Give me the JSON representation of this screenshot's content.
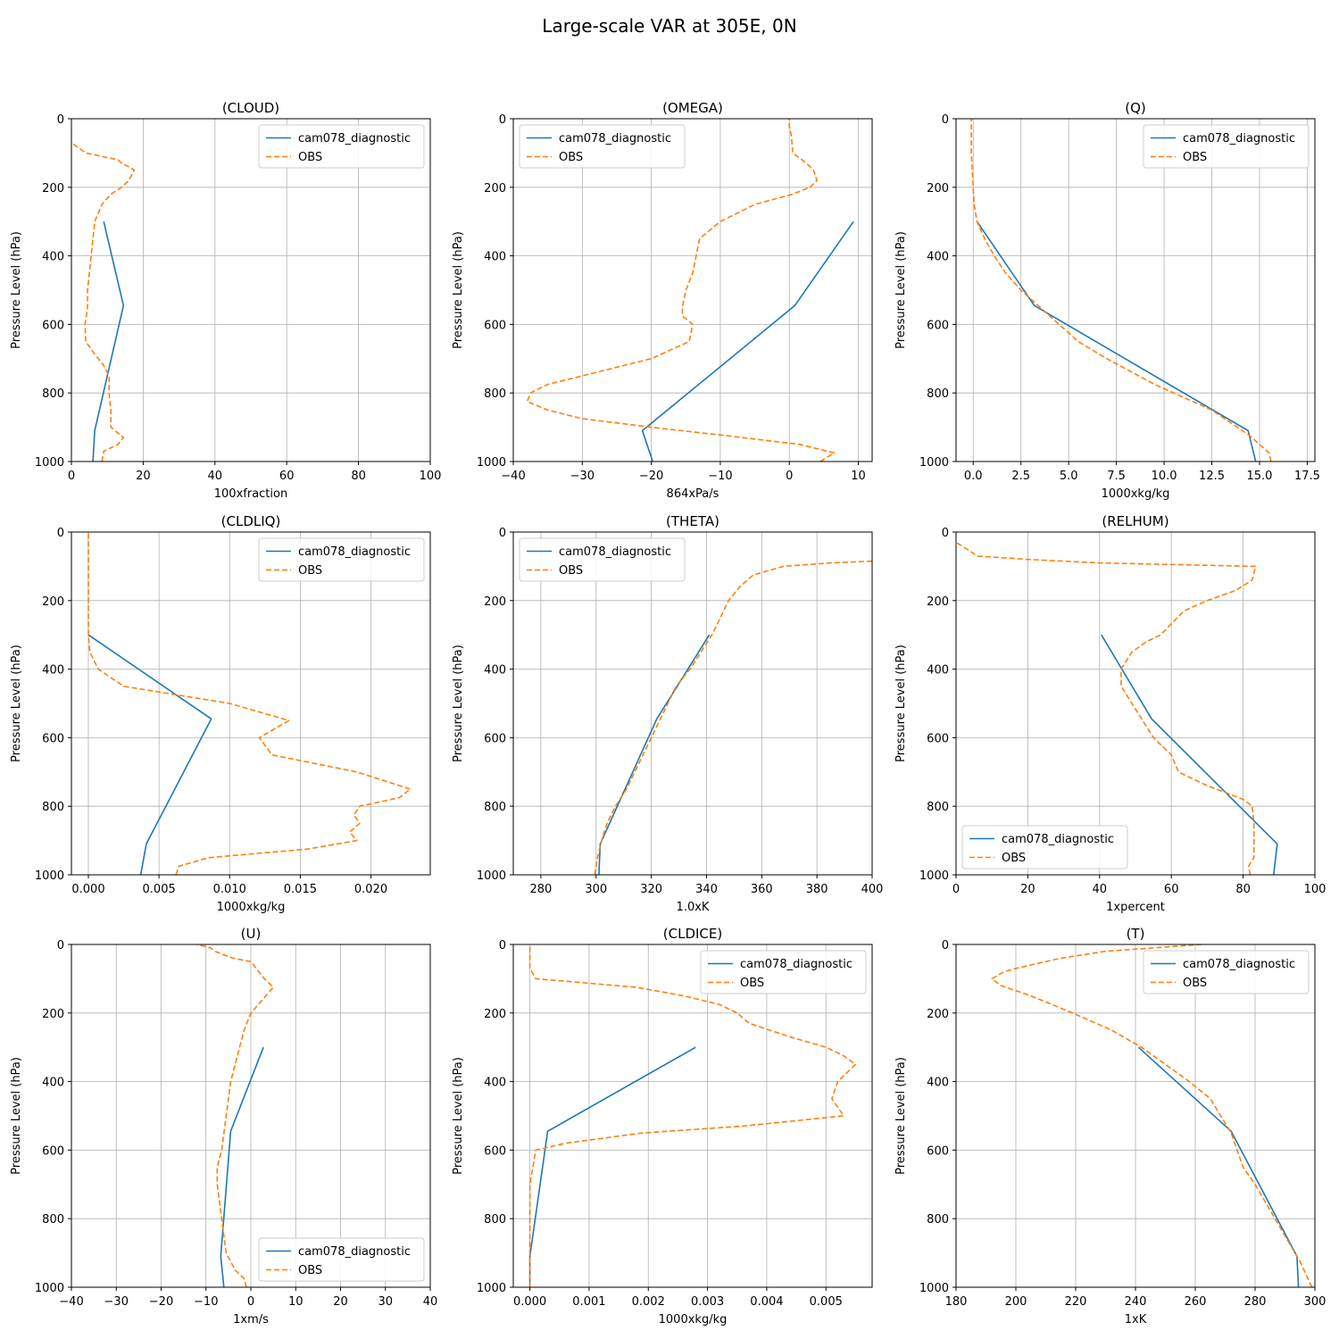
{
  "figure_title": "Large-scale VAR at 305E, 0N",
  "colors": {
    "model": "#1f77b4",
    "obs": "#ff7f0e",
    "grid": "#b0b0b0"
  },
  "chart_data": [
    {
      "type": "line",
      "title": "(CLOUD)",
      "xlabel": "100xfraction",
      "ylabel": "Pressure Level (hPa)",
      "xlim": [
        0,
        100
      ],
      "ylim": [
        1000,
        0
      ],
      "xticks": [
        0,
        20,
        40,
        60,
        80,
        100
      ],
      "yticks": [
        0,
        200,
        400,
        600,
        800,
        1000
      ],
      "grid": true,
      "legend": "upper-right",
      "series": [
        {
          "name": "cam078_diagnostic",
          "style": "solid",
          "x": [
            6,
            6.5,
            14.5,
            9
          ],
          "y": [
            1000,
            910,
            545,
            300
          ]
        },
        {
          "name": "OBS",
          "style": "dashed",
          "x": [
            8.5,
            9,
            13,
            14.5,
            11,
            11,
            10.5,
            10.5,
            9,
            6,
            4,
            3.8,
            4.5,
            4.5,
            5,
            5.5,
            6.5,
            8.5,
            11,
            14,
            16,
            17.5,
            16,
            14,
            13,
            4,
            0
          ],
          "y": [
            1000,
            970,
            950,
            930,
            900,
            850,
            800,
            750,
            720,
            680,
            650,
            600,
            550,
            500,
            450,
            400,
            300,
            250,
            220,
            200,
            180,
            150,
            140,
            130,
            120,
            100,
            70
          ]
        }
      ]
    },
    {
      "type": "line",
      "title": "(OMEGA)",
      "xlabel": "864xPa/s",
      "ylabel": "Pressure Level (hPa)",
      "xlim": [
        -40,
        12
      ],
      "ylim": [
        1000,
        0
      ],
      "xticks": [
        -40,
        -30,
        -20,
        -10,
        0,
        10
      ],
      "yticks": [
        0,
        200,
        400,
        600,
        800,
        1000
      ],
      "grid": true,
      "legend": "upper-left",
      "series": [
        {
          "name": "cam078_diagnostic",
          "style": "solid",
          "x": [
            -19.8,
            -21.3,
            0.8,
            9.3
          ],
          "y": [
            1000,
            910,
            545,
            300
          ]
        },
        {
          "name": "OBS",
          "style": "dashed",
          "x": [
            4.5,
            6.5,
            1.5,
            -9,
            -20,
            -30,
            -35,
            -38,
            -37.5,
            -35,
            -20,
            -14.5,
            -14,
            -15.5,
            -15.5,
            -15,
            -14,
            -13,
            -10,
            -5,
            0.5,
            3,
            4,
            3.5,
            2.5,
            0.5,
            0.3,
            0,
            0
          ],
          "y": [
            1000,
            975,
            950,
            925,
            900,
            875,
            850,
            825,
            800,
            775,
            700,
            650,
            600,
            575,
            550,
            500,
            450,
            350,
            300,
            250,
            220,
            200,
            180,
            150,
            130,
            100,
            50,
            20,
            0
          ]
        }
      ]
    },
    {
      "type": "line",
      "title": "(Q)",
      "xlabel": "1000xkg/kg",
      "ylabel": "Pressure Level (hPa)",
      "xlim": [
        -0.9,
        17.9
      ],
      "ylim": [
        1000,
        0
      ],
      "xticks": [
        0.0,
        2.5,
        5.0,
        7.5,
        10.0,
        12.5,
        15.0,
        17.5
      ],
      "xticklabels": [
        "0.0",
        "2.5",
        "5.0",
        "7.5",
        "10.0",
        "12.5",
        "15.0",
        "17.5"
      ],
      "yticks": [
        0,
        200,
        400,
        600,
        800,
        1000
      ],
      "grid": true,
      "legend": "upper-right",
      "series": [
        {
          "name": "cam078_diagnostic",
          "style": "solid",
          "x": [
            14.8,
            14.4,
            3.2,
            0.2
          ],
          "y": [
            1000,
            910,
            545,
            300
          ]
        },
        {
          "name": "OBS",
          "style": "dashed",
          "x": [
            15.6,
            15.5,
            14.5,
            12.5,
            9.5,
            7,
            5.5,
            4.5,
            3.5,
            2.5,
            1.7,
            1.1,
            0.6,
            0.2,
            0.05,
            0,
            -0.1,
            -0.1
          ],
          "y": [
            1000,
            975,
            925,
            850,
            775,
            700,
            650,
            600,
            550,
            500,
            450,
            400,
            350,
            300,
            250,
            200,
            100,
            0
          ]
        }
      ]
    },
    {
      "type": "line",
      "title": "(CLDLIQ)",
      "xlabel": "1000xkg/kg",
      "ylabel": "Pressure Level (hPa)",
      "xlim": [
        -0.0012,
        0.0242
      ],
      "ylim": [
        1000,
        0
      ],
      "xticks": [
        0,
        0.005,
        0.01,
        0.015,
        0.02
      ],
      "xticklabels": [
        "0.000",
        "0.005",
        "0.010",
        "0.015",
        "0.020"
      ],
      "yticks": [
        0,
        200,
        400,
        600,
        800,
        1000
      ],
      "grid": true,
      "legend": "upper-right",
      "series": [
        {
          "name": "cam078_diagnostic",
          "style": "solid",
          "x": [
            0.0037,
            0.0041,
            0.0087,
            0
          ],
          "y": [
            1000,
            910,
            545,
            300
          ]
        },
        {
          "name": "OBS",
          "style": "dashed",
          "x": [
            0.0062,
            0.0064,
            0.0085,
            0.0155,
            0.019,
            0.0185,
            0.0192,
            0.0188,
            0.0192,
            0.022,
            0.0228,
            0.019,
            0.013,
            0.0121,
            0.0142,
            0.01,
            0.0025,
            0.0007,
            0.0001,
            0,
            0,
            0,
            0,
            0
          ],
          "y": [
            1000,
            975,
            950,
            925,
            900,
            875,
            850,
            825,
            800,
            775,
            750,
            700,
            650,
            600,
            550,
            500,
            450,
            400,
            350,
            300,
            250,
            200,
            100,
            0
          ]
        }
      ]
    },
    {
      "type": "line",
      "title": "(THETA)",
      "xlabel": "1.0xK",
      "ylabel": "Pressure Level (hPa)",
      "xlim": [
        270,
        400
      ],
      "ylim": [
        1000,
        0
      ],
      "xticks": [
        280,
        300,
        320,
        340,
        360,
        380,
        400
      ],
      "yticks": [
        0,
        200,
        400,
        600,
        800,
        1000
      ],
      "grid": true,
      "legend": "upper-left",
      "series": [
        {
          "name": "cam078_diagnostic",
          "style": "solid",
          "x": [
            301,
            301.5,
            322,
            341
          ],
          "y": [
            1000,
            910,
            545,
            300
          ]
        },
        {
          "name": "OBS",
          "style": "dashed",
          "x": [
            299.5,
            300.5,
            302,
            304,
            307,
            311,
            317,
            323,
            329,
            334,
            338,
            342,
            345,
            348,
            352,
            357,
            368,
            385,
            400
          ],
          "y": [
            1000,
            950,
            900,
            850,
            800,
            750,
            650,
            550,
            450,
            400,
            350,
            300,
            250,
            200,
            160,
            125,
            100,
            90,
            85
          ]
        }
      ]
    },
    {
      "type": "line",
      "title": "(RELHUM)",
      "xlabel": "1xpercent",
      "ylabel": "Pressure Level (hPa)",
      "xlim": [
        0,
        100
      ],
      "ylim": [
        1000,
        0
      ],
      "xticks": [
        0,
        20,
        40,
        60,
        80,
        100
      ],
      "yticks": [
        0,
        200,
        400,
        600,
        800,
        1000
      ],
      "grid": true,
      "legend": "lower-left",
      "series": [
        {
          "name": "cam078_diagnostic",
          "style": "solid",
          "x": [
            88.5,
            89.5,
            54.5,
            40.5
          ],
          "y": [
            1000,
            910,
            545,
            300
          ]
        },
        {
          "name": "OBS",
          "style": "dashed",
          "x": [
            82,
            81.5,
            83,
            83,
            83,
            82.5,
            80,
            75,
            70,
            62,
            60,
            55,
            49,
            46,
            46,
            49,
            53,
            57,
            63.5,
            70,
            78,
            82.5,
            83.5,
            82.5,
            40,
            20,
            6,
            3,
            0
          ],
          "y": [
            1000,
            975,
            950,
            900,
            850,
            800,
            780,
            760,
            740,
            700,
            650,
            600,
            500,
            450,
            400,
            350,
            320,
            300,
            230,
            200,
            170,
            140,
            100,
            100,
            90,
            80,
            70,
            50,
            30
          ]
        }
      ]
    },
    {
      "type": "line",
      "title": "(U)",
      "xlabel": "1xm/s",
      "ylabel": "Pressure Level (hPa)",
      "xlim": [
        -40,
        40
      ],
      "ylim": [
        1000,
        0
      ],
      "xticks": [
        -40,
        -30,
        -20,
        -10,
        0,
        10,
        20,
        30,
        40
      ],
      "yticks": [
        0,
        200,
        400,
        600,
        800,
        1000
      ],
      "grid": true,
      "legend": "lower-right",
      "series": [
        {
          "name": "cam078_diagnostic",
          "style": "solid",
          "x": [
            -6,
            -6.7,
            -4.5,
            2.8
          ],
          "y": [
            1000,
            910,
            545,
            300
          ]
        },
        {
          "name": "OBS",
          "style": "dashed",
          "x": [
            -1,
            -1.5,
            -3.5,
            -5.5,
            -6,
            -6.5,
            -7,
            -7.5,
            -7.5,
            -6.5,
            -5.5,
            -4.5,
            -3.5,
            -2.5,
            -1.5,
            0,
            2,
            4,
            5,
            3,
            0,
            -4,
            -8,
            -9,
            -12
          ],
          "y": [
            1000,
            975,
            950,
            900,
            850,
            800,
            750,
            700,
            650,
            600,
            500,
            400,
            350,
            300,
            250,
            200,
            170,
            140,
            125,
            100,
            50,
            40,
            20,
            10,
            0
          ]
        }
      ]
    },
    {
      "type": "line",
      "title": "(CLDICE)",
      "xlabel": "1000xkg/kg",
      "ylabel": "Pressure Level (hPa)",
      "xlim": [
        -0.00028,
        0.00578
      ],
      "ylim": [
        1000,
        0
      ],
      "xticks": [
        0,
        0.001,
        0.002,
        0.003,
        0.004,
        0.005
      ],
      "xticklabels": [
        "0.000",
        "0.001",
        "0.002",
        "0.003",
        "0.004",
        "0.005"
      ],
      "yticks": [
        0,
        200,
        400,
        600,
        800,
        1000
      ],
      "grid": true,
      "legend": "upper-right",
      "series": [
        {
          "name": "cam078_diagnostic",
          "style": "solid",
          "x": [
            0,
            0,
            0.0003,
            0.0028
          ],
          "y": [
            1000,
            910,
            545,
            300
          ]
        },
        {
          "name": "OBS",
          "style": "dashed",
          "x": [
            0,
            0,
            0,
            0,
            0.0001,
            0.0006,
            0.0019,
            0.0036,
            0.0053,
            0.0052,
            0.0051,
            0.0052,
            0.0055,
            0.0053,
            0.005,
            0.0044,
            0.0037,
            0.0035,
            0.0032,
            0.0026,
            0.0018,
            0.0001,
            0,
            0
          ],
          "y": [
            1000,
            900,
            800,
            700,
            600,
            580,
            550,
            530,
            500,
            475,
            450,
            400,
            350,
            325,
            300,
            270,
            230,
            200,
            175,
            150,
            125,
            100,
            70,
            0
          ]
        }
      ]
    },
    {
      "type": "line",
      "title": "(T)",
      "xlabel": "1xK",
      "ylabel": "Pressure Level (hPa)",
      "xlim": [
        180,
        300
      ],
      "ylim": [
        1000,
        0
      ],
      "xticks": [
        180,
        200,
        220,
        240,
        260,
        280,
        300
      ],
      "yticks": [
        0,
        200,
        400,
        600,
        800,
        1000
      ],
      "grid": true,
      "legend": "upper-right",
      "series": [
        {
          "name": "cam078_diagnostic",
          "style": "solid",
          "x": [
            294.5,
            294,
            272,
            241
          ],
          "y": [
            1000,
            910,
            545,
            300
          ]
        },
        {
          "name": "OBS",
          "style": "dashed",
          "x": [
            299,
            295,
            290,
            285,
            280,
            276,
            272,
            265,
            258,
            250,
            242,
            232,
            219,
            205,
            195,
            192,
            196,
            200,
            205,
            215,
            230,
            262,
            280
          ],
          "y": [
            1000,
            925,
            850,
            775,
            700,
            650,
            550,
            450,
            400,
            350,
            300,
            250,
            200,
            150,
            120,
            100,
            80,
            70,
            60,
            40,
            20,
            0,
            -10
          ]
        }
      ]
    }
  ]
}
